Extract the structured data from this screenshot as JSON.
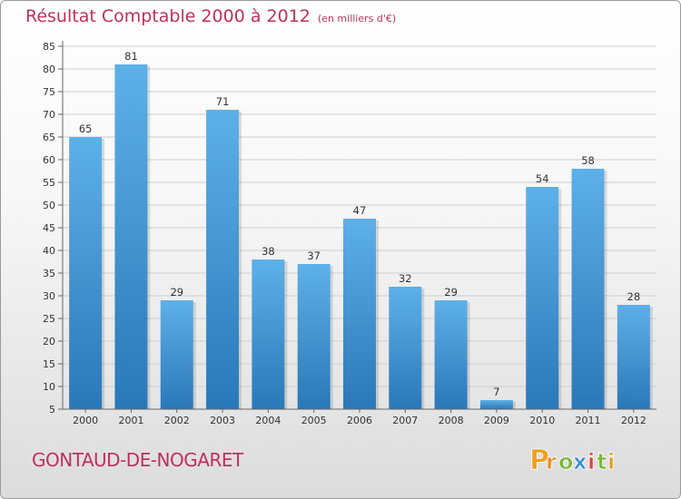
{
  "header": {
    "title": "Résultat Comptable 2000 à 2012",
    "unit": "(en milliers d'€)"
  },
  "footer": {
    "city": "GONTAUD-DE-NOGARET",
    "logo_text": "Proxiti"
  },
  "colors": {
    "title": "#c0305c",
    "bar_light": "#5eb0e8",
    "bar_dark": "#2a78b8",
    "logo_letters": [
      "#f0a020",
      "#f08a20",
      "#7ab838",
      "#3a8ad8",
      "#e04040",
      "#7ab838",
      "#e0a020"
    ]
  },
  "chart_data": {
    "type": "bar",
    "categories": [
      "2000",
      "2001",
      "2002",
      "2003",
      "2004",
      "2005",
      "2006",
      "2007",
      "2008",
      "2009",
      "2010",
      "2011",
      "2012"
    ],
    "values": [
      65,
      81,
      29,
      71,
      38,
      37,
      47,
      32,
      29,
      7,
      54,
      58,
      28
    ],
    "data_labels": [
      "65",
      "81",
      "29",
      "71",
      "38",
      "37",
      "47",
      "32",
      "29",
      "7",
      "54",
      "58",
      "28"
    ],
    "yticks": [
      "5",
      "10",
      "15",
      "20",
      "25",
      "30",
      "35",
      "40",
      "45",
      "50",
      "55",
      "60",
      "65",
      "70",
      "75",
      "80",
      "85"
    ],
    "ylim": [
      5,
      85
    ],
    "grid": true
  }
}
